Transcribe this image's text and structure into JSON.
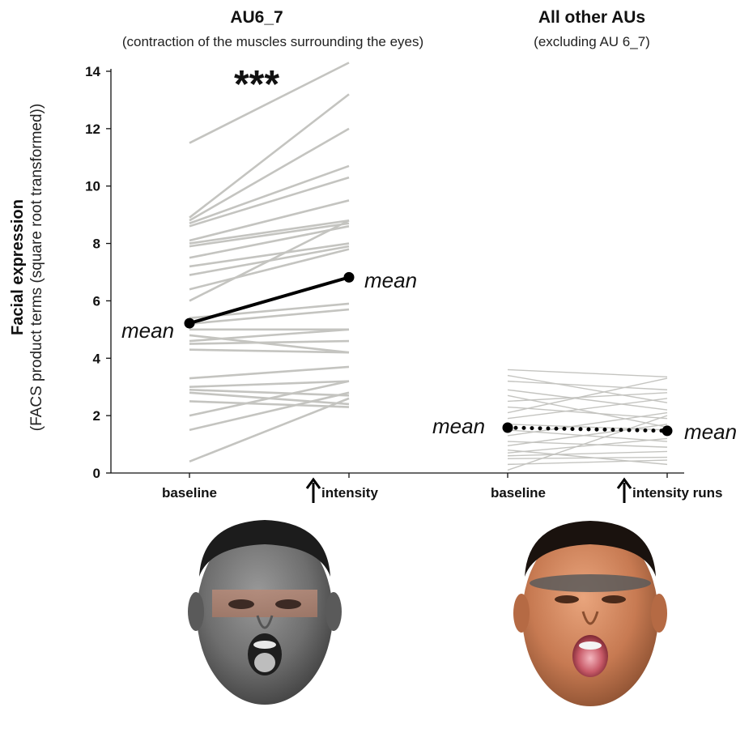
{
  "chart_data": [
    {
      "type": "line",
      "title": "AU6_7",
      "subtitle": "(contraction of the muscles surrounding the eyes)",
      "ylabel": "Facial expression",
      "ylabel_sub": "(FACS product terms (square root transformed))",
      "categories": [
        "baseline",
        "intensity"
      ],
      "ylim": [
        0,
        14
      ],
      "yticks": [
        0,
        2,
        4,
        6,
        8,
        10,
        12,
        14
      ],
      "significance": "***",
      "mean_label": "mean",
      "mean_color": "#000000",
      "line_color": "#c4c4c0",
      "mean": [
        5.22,
        6.82
      ],
      "subjects": [
        [
          11.5,
          14.3
        ],
        [
          8.9,
          13.2
        ],
        [
          8.8,
          12.0
        ],
        [
          8.7,
          10.7
        ],
        [
          8.6,
          10.3
        ],
        [
          8.1,
          9.5
        ],
        [
          8.0,
          8.8
        ],
        [
          7.9,
          8.7
        ],
        [
          7.5,
          8.6
        ],
        [
          7.2,
          8.0
        ],
        [
          6.9,
          7.9
        ],
        [
          6.4,
          7.8
        ],
        [
          6.0,
          8.8
        ],
        [
          5.4,
          5.9
        ],
        [
          5.2,
          5.7
        ],
        [
          5.0,
          5.0
        ],
        [
          4.8,
          4.2
        ],
        [
          4.6,
          5.0
        ],
        [
          4.5,
          4.6
        ],
        [
          4.3,
          4.2
        ],
        [
          3.3,
          3.7
        ],
        [
          3.0,
          3.2
        ],
        [
          2.9,
          2.7
        ],
        [
          2.8,
          2.4
        ],
        [
          2.5,
          2.3
        ],
        [
          2.0,
          3.2
        ],
        [
          1.5,
          2.8
        ],
        [
          0.4,
          2.6
        ]
      ]
    },
    {
      "type": "line",
      "title": "All other AUs",
      "subtitle": "(excluding AU 6_7)",
      "categories": [
        "baseline",
        "intensity runs"
      ],
      "ylim": [
        0,
        14
      ],
      "mean_label": "mean",
      "mean_style": "dotted",
      "mean": [
        1.58,
        1.47
      ],
      "subjects": [
        [
          3.6,
          3.35
        ],
        [
          3.4,
          2.45
        ],
        [
          3.2,
          2.9
        ],
        [
          2.9,
          2.2
        ],
        [
          2.7,
          1.6
        ],
        [
          2.5,
          2.8
        ],
        [
          2.3,
          1.9
        ],
        [
          2.1,
          3.3
        ],
        [
          1.9,
          2.6
        ],
        [
          1.7,
          1.5
        ],
        [
          1.5,
          1.1
        ],
        [
          1.3,
          2.1
        ],
        [
          1.1,
          0.9
        ],
        [
          0.95,
          1.7
        ],
        [
          0.8,
          0.3
        ],
        [
          0.7,
          1.2
        ],
        [
          0.6,
          0.75
        ],
        [
          0.5,
          0.55
        ],
        [
          0.3,
          0.45
        ],
        [
          0.1,
          2.0
        ]
      ]
    }
  ],
  "faces": [
    {
      "name": "au6-7-face",
      "skin": "#6e6e6e",
      "band": "tinted-eye-region"
    },
    {
      "name": "other-aus-face",
      "skin": "#c77a52",
      "band": "dark-eye-band"
    }
  ]
}
